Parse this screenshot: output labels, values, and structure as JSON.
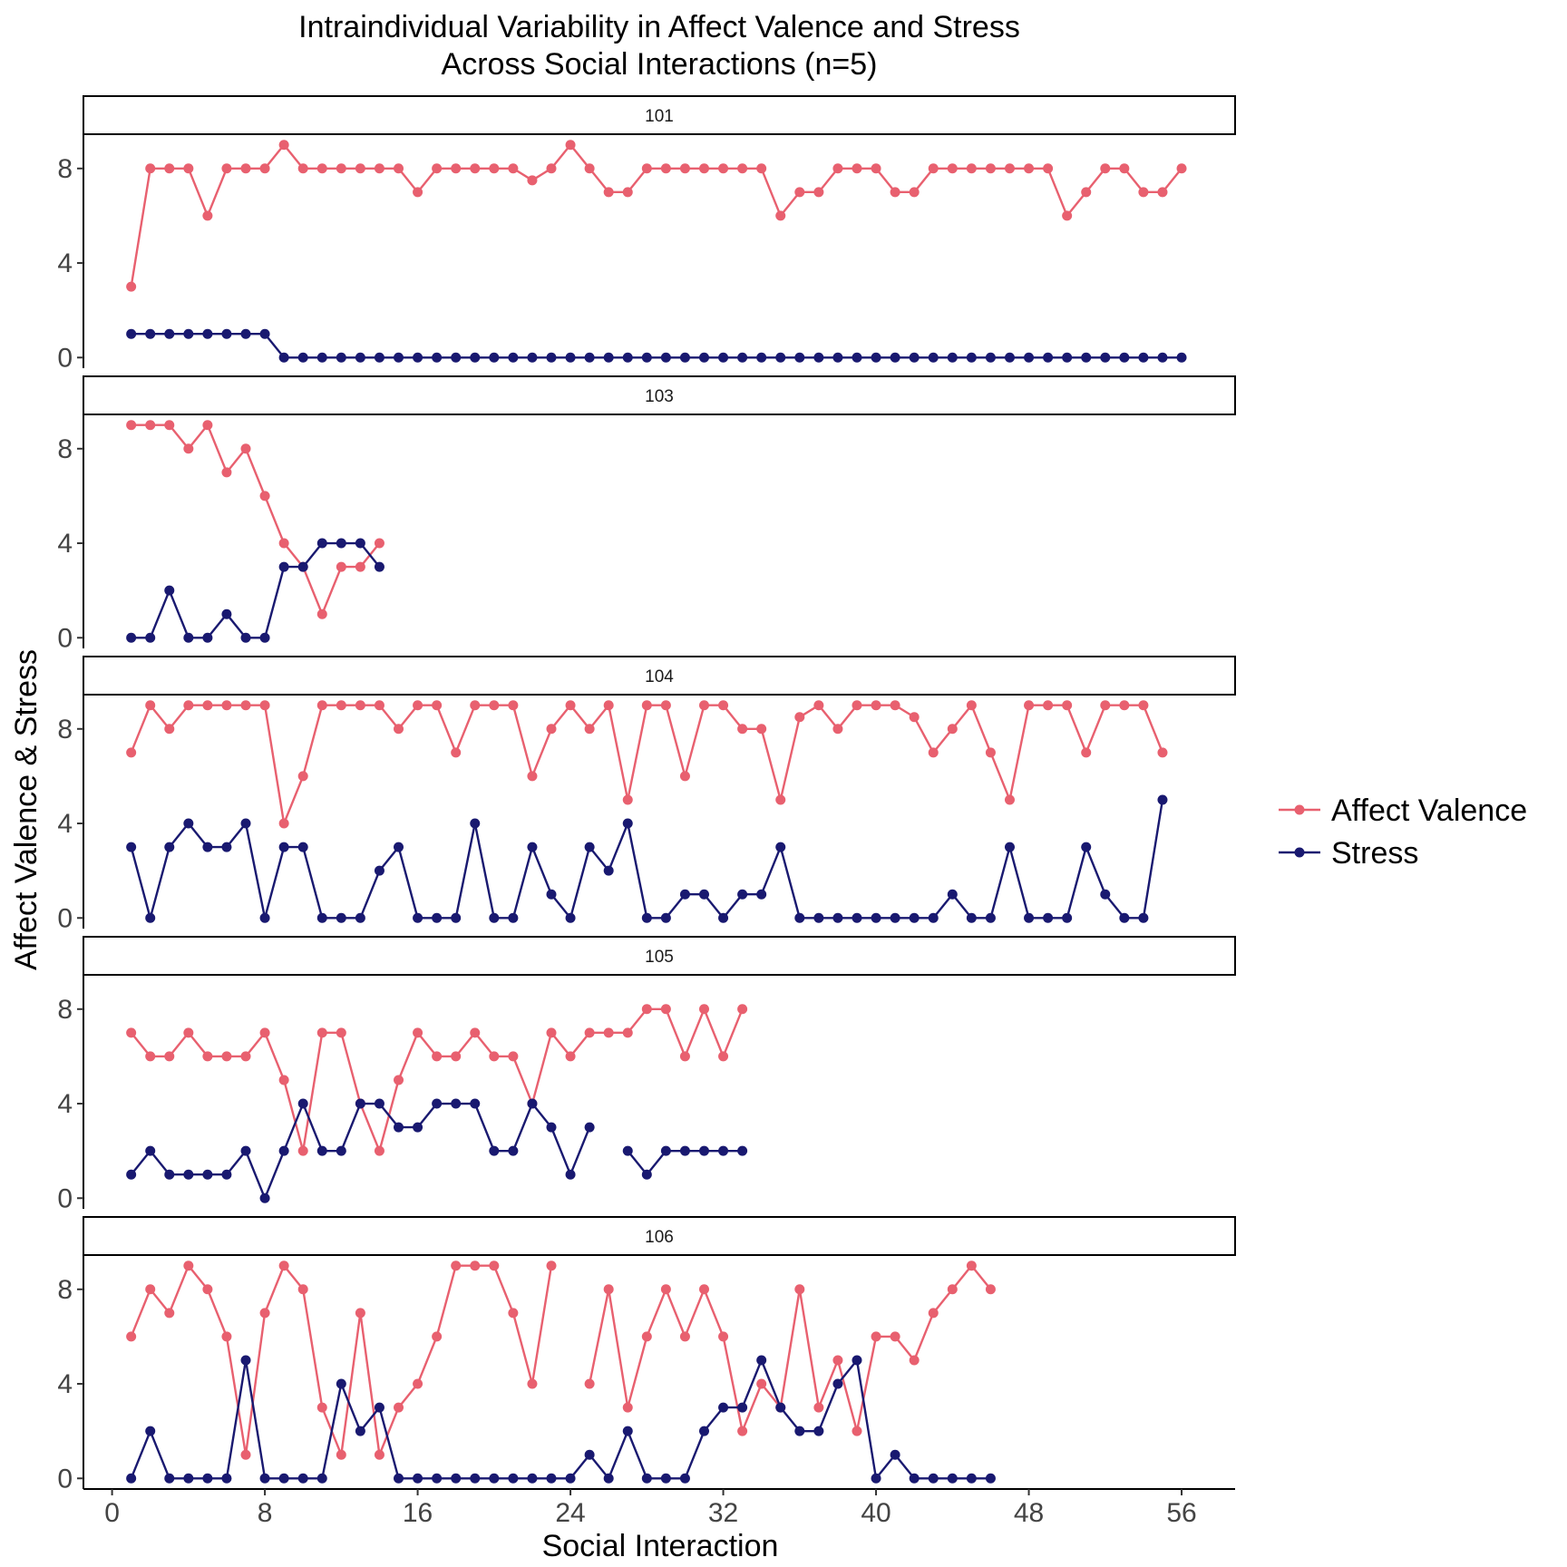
{
  "chart_data": {
    "type": "line",
    "title": [
      "Intraindividual Variability in Affect Valence and Stress",
      "Across Social Interactions (n=5)"
    ],
    "xlabel": "Social Interaction",
    "ylabel": "Affect Valence & Stress",
    "xlim": [
      -1.5,
      58.8
    ],
    "ylim": [
      -0.45,
      9.45
    ],
    "xticks": [
      0,
      8,
      16,
      24,
      32,
      40,
      48,
      56
    ],
    "yticks": [
      0,
      4,
      8
    ],
    "legend": {
      "placement": "right"
    },
    "colors": {
      "Affect Valence": "#E8606F",
      "Stress": "#191970"
    },
    "series_names": [
      "Affect Valence",
      "Stress"
    ],
    "panels": [
      {
        "label": "101",
        "affect": [
          3,
          8,
          8,
          8,
          6,
          8,
          8,
          8,
          9,
          8,
          8,
          8,
          8,
          8,
          8,
          7,
          8,
          8,
          8,
          8,
          8,
          7.5,
          8,
          9,
          8,
          7,
          7,
          8,
          8,
          8,
          8,
          8,
          8,
          8,
          6,
          7,
          7,
          8,
          8,
          8,
          7,
          7,
          8,
          8,
          8,
          8,
          8,
          8,
          8,
          6,
          7,
          8,
          8,
          7,
          7,
          8
        ],
        "stress": [
          1,
          1,
          1,
          1,
          1,
          1,
          1,
          1,
          0,
          0,
          0,
          0,
          0,
          0,
          0,
          0,
          0,
          0,
          0,
          0,
          0,
          0,
          0,
          0,
          0,
          0,
          0,
          0,
          0,
          0,
          0,
          0,
          0,
          0,
          0,
          0,
          0,
          0,
          0,
          0,
          0,
          0,
          0,
          0,
          0,
          0,
          0,
          0,
          0,
          0,
          0,
          0,
          0,
          0,
          0,
          0
        ]
      },
      {
        "label": "103",
        "affect": [
          9,
          9,
          9,
          8,
          9,
          7,
          8,
          6,
          4,
          3,
          1,
          3,
          3,
          4
        ],
        "stress": [
          0,
          0,
          2,
          0,
          0,
          1,
          0,
          0,
          3,
          3,
          4,
          4,
          4,
          3
        ]
      },
      {
        "label": "104",
        "affect": [
          7,
          9,
          8,
          9,
          9,
          9,
          9,
          9,
          4,
          6,
          9,
          9,
          9,
          9,
          8,
          9,
          9,
          7,
          9,
          9,
          9,
          6,
          8,
          9,
          8,
          9,
          5,
          9,
          9,
          6,
          9,
          9,
          8,
          8,
          5,
          8.5,
          9,
          8,
          9,
          9,
          9,
          8.5,
          7,
          8,
          9,
          7,
          5,
          9,
          9,
          9,
          7,
          9,
          9,
          9,
          7
        ],
        "stress": [
          3,
          0,
          3,
          4,
          3,
          3,
          4,
          0,
          3,
          3,
          0,
          0,
          0,
          2,
          3,
          0,
          0,
          0,
          4,
          0,
          0,
          3,
          1,
          0,
          3,
          2,
          4,
          0,
          0,
          1,
          1,
          0,
          1,
          1,
          3,
          0,
          0,
          0,
          0,
          0,
          0,
          0,
          0,
          1,
          0,
          0,
          3,
          0,
          0,
          0,
          3,
          1,
          0,
          0,
          5
        ]
      },
      {
        "label": "105",
        "affect": [
          7,
          6,
          6,
          7,
          6,
          6,
          6,
          7,
          5,
          2,
          7,
          7,
          4,
          2,
          5,
          7,
          6,
          6,
          7,
          6,
          6,
          4,
          7,
          6,
          7,
          7,
          7,
          8,
          8,
          6,
          8,
          6,
          8
        ],
        "stress": [
          1,
          2,
          1,
          1,
          1,
          1,
          2,
          0,
          2,
          4,
          2,
          2,
          4,
          4,
          3,
          3,
          4,
          4,
          4,
          2,
          2,
          4,
          3,
          1,
          3,
          null,
          2,
          1,
          2,
          2,
          2,
          2,
          2
        ]
      },
      {
        "label": "106",
        "affect": [
          6,
          8,
          7,
          9,
          8,
          6,
          1,
          7,
          9,
          8,
          3,
          1,
          7,
          1,
          3,
          4,
          6,
          9,
          9,
          9,
          7,
          4,
          9,
          null,
          4,
          8,
          3,
          6,
          8,
          6,
          8,
          6,
          2,
          4,
          3,
          8,
          3,
          5,
          2,
          6,
          6,
          5,
          7,
          8,
          9,
          8
        ],
        "stress": [
          0,
          2,
          0,
          0,
          0,
          0,
          5,
          0,
          0,
          0,
          0,
          4,
          2,
          3,
          0,
          0,
          0,
          0,
          0,
          0,
          0,
          0,
          0,
          0,
          1,
          0,
          2,
          0,
          0,
          0,
          2,
          3,
          3,
          5,
          3,
          2,
          2,
          4,
          5,
          0,
          1,
          0,
          0,
          0,
          0,
          0
        ]
      }
    ]
  }
}
